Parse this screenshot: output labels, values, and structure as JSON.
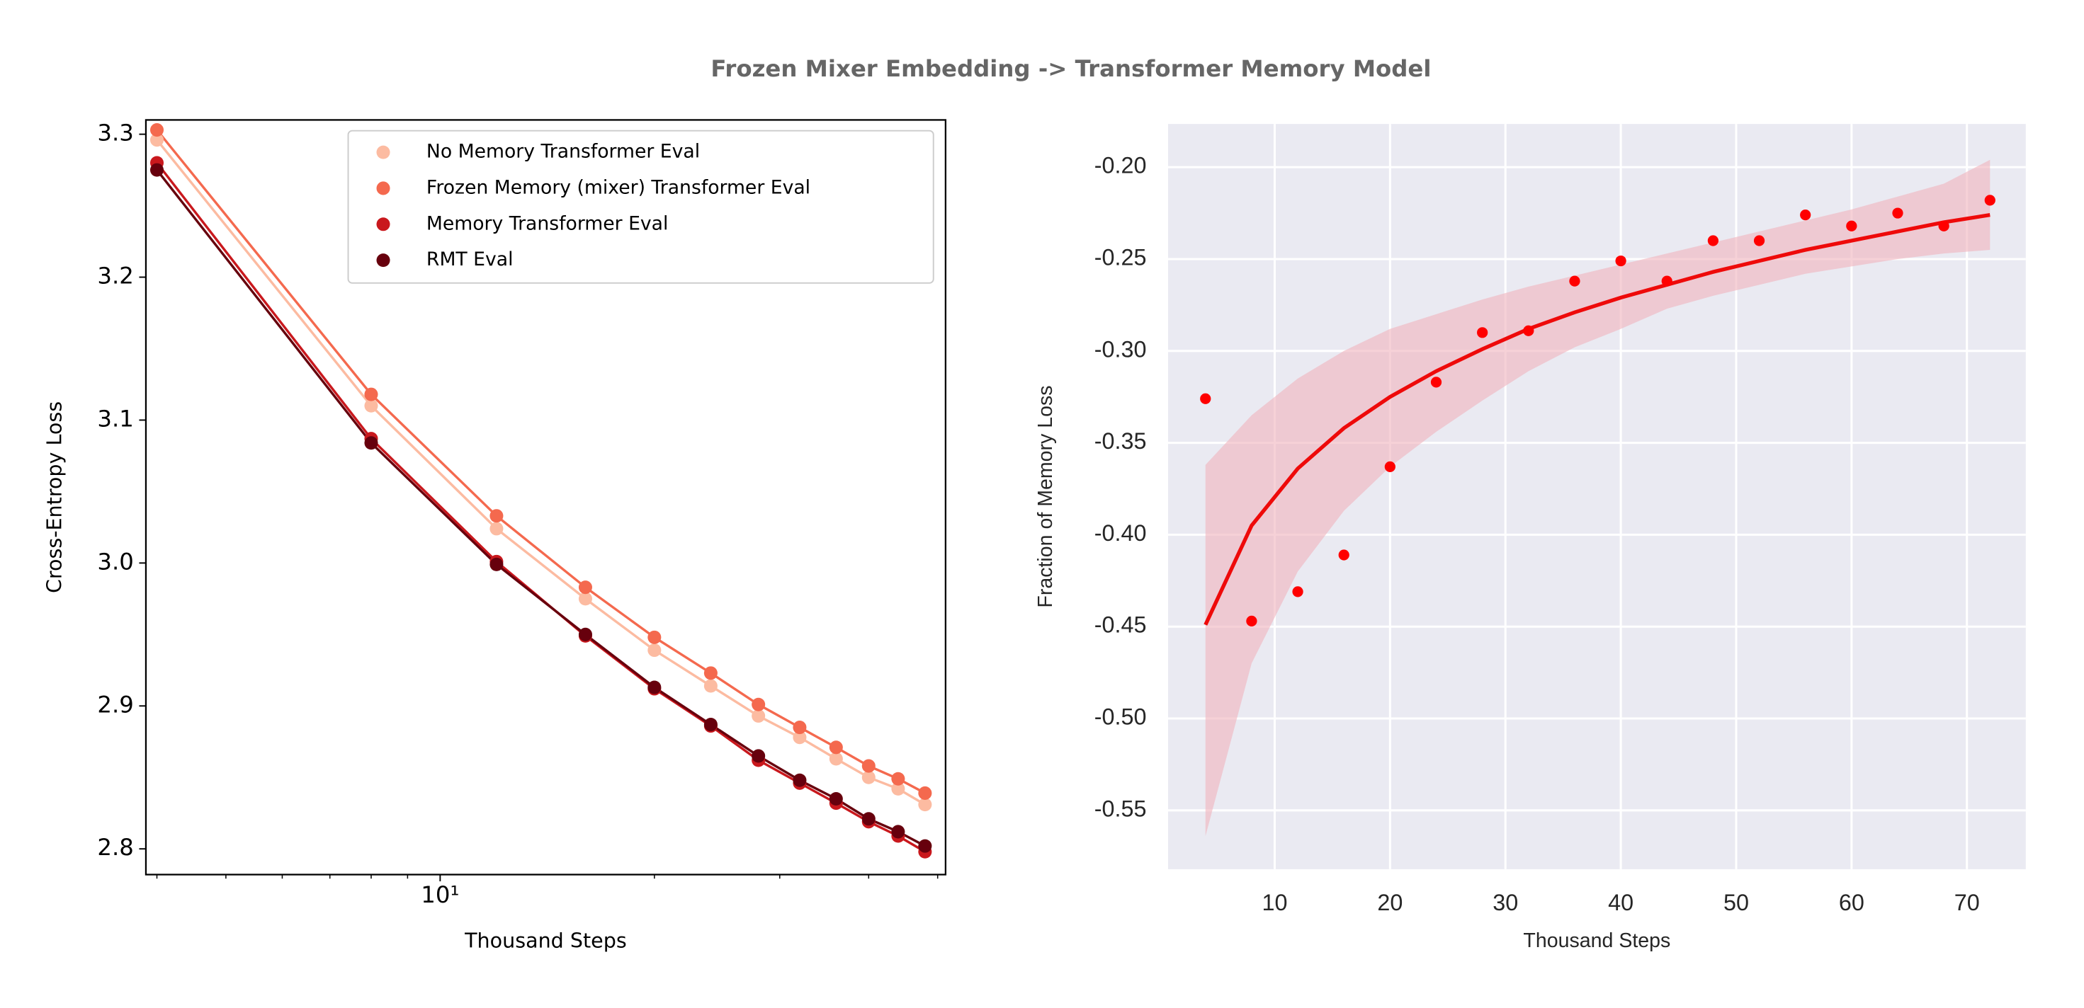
{
  "title": "Frozen Mixer Embedding -> Transformer Memory Model",
  "chart_data": [
    {
      "type": "line",
      "xlabel": "Thousand Steps",
      "ylabel": "Cross-Entropy Loss",
      "xscale": "log",
      "x": [
        4,
        8,
        12,
        16,
        20,
        24,
        28,
        32,
        36,
        40,
        44,
        48
      ],
      "xlim": [
        3.86,
        51.3
      ],
      "xticks": [
        {
          "value": 10,
          "label": "10¹"
        }
      ],
      "xminorticks": [
        4,
        5,
        6,
        7,
        8,
        9,
        20,
        30,
        40,
        50
      ],
      "ylim": [
        2.782,
        3.31
      ],
      "yticks": [
        2.8,
        2.9,
        {
          "value": 3,
          "label": "3.0"
        },
        3.1,
        3.2,
        3.3
      ],
      "legend": "upper right",
      "grid": false,
      "series": [
        {
          "name": "No Memory Transformer Eval",
          "color": "#fcbba1",
          "values": [
            3.296,
            3.11,
            3.024,
            2.975,
            2.939,
            2.914,
            2.893,
            2.878,
            2.863,
            2.85,
            2.842,
            2.831
          ]
        },
        {
          "name": "Frozen Memory (mixer) Transformer Eval",
          "color": "#f4694e",
          "values": [
            3.303,
            3.118,
            3.033,
            2.983,
            2.948,
            2.923,
            2.901,
            2.885,
            2.871,
            2.858,
            2.849,
            2.839
          ]
        },
        {
          "name": "Memory Transformer Eval",
          "color": "#c9181d",
          "values": [
            3.28,
            3.087,
            3.001,
            2.949,
            2.912,
            2.886,
            2.862,
            2.846,
            2.832,
            2.819,
            2.809,
            2.798
          ]
        },
        {
          "name": "RMT Eval",
          "color": "#67000d",
          "values": [
            3.275,
            3.084,
            2.999,
            2.95,
            2.913,
            2.887,
            2.865,
            2.848,
            2.835,
            2.821,
            2.812,
            2.802
          ]
        }
      ]
    },
    {
      "type": "scatter",
      "xlabel": "Thousand Steps",
      "ylabel": "Fraction of Memory Loss",
      "x": [
        4,
        8,
        12,
        16,
        20,
        24,
        28,
        32,
        36,
        40,
        44,
        48,
        52,
        56,
        60,
        64,
        68,
        72
      ],
      "values": [
        -0.326,
        -0.447,
        -0.431,
        -0.411,
        -0.363,
        -0.317,
        -0.29,
        -0.289,
        -0.262,
        -0.251,
        -0.262,
        -0.24,
        -0.24,
        -0.226,
        -0.232,
        -0.225,
        -0.232,
        -0.218
      ],
      "color": "#ff0000",
      "fit": {
        "color": "#ee0a0a",
        "values": [
          -0.449,
          -0.395,
          -0.364,
          -0.342,
          -0.325,
          -0.311,
          -0.299,
          -0.288,
          -0.279,
          -0.271,
          -0.264,
          -0.257,
          -0.251,
          -0.245,
          -0.24,
          -0.235,
          -0.23,
          -0.226
        ]
      },
      "band": {
        "color": "#f0b3bd",
        "upper": [
          -0.362,
          -0.335,
          -0.315,
          -0.3,
          -0.288,
          -0.28,
          -0.272,
          -0.265,
          -0.259,
          -0.253,
          -0.247,
          -0.241,
          -0.235,
          -0.229,
          -0.223,
          -0.216,
          -0.209,
          -0.196
        ],
        "lower": [
          -0.564,
          -0.47,
          -0.42,
          -0.387,
          -0.363,
          -0.344,
          -0.327,
          -0.311,
          -0.298,
          -0.288,
          -0.277,
          -0.27,
          -0.264,
          -0.258,
          -0.254,
          -0.25,
          -0.247,
          -0.245
        ]
      },
      "xlim": [
        0.76,
        75.1
      ],
      "xticks": [
        10,
        20,
        30,
        40,
        50,
        60,
        70
      ],
      "ylim": [
        -0.582,
        -0.1765
      ],
      "yticks": [
        {
          "value": -0.55,
          "label": "-0.55"
        },
        {
          "value": -0.5,
          "label": "-0.50"
        },
        {
          "value": -0.45,
          "label": "-0.45"
        },
        {
          "value": -0.4,
          "label": "-0.40"
        },
        {
          "value": -0.35,
          "label": "-0.35"
        },
        {
          "value": -0.3,
          "label": "-0.30"
        },
        {
          "value": -0.25,
          "label": "-0.25"
        },
        {
          "value": -0.2,
          "label": "-0.20"
        }
      ],
      "grid": true,
      "background": "#eaeaf2"
    }
  ]
}
